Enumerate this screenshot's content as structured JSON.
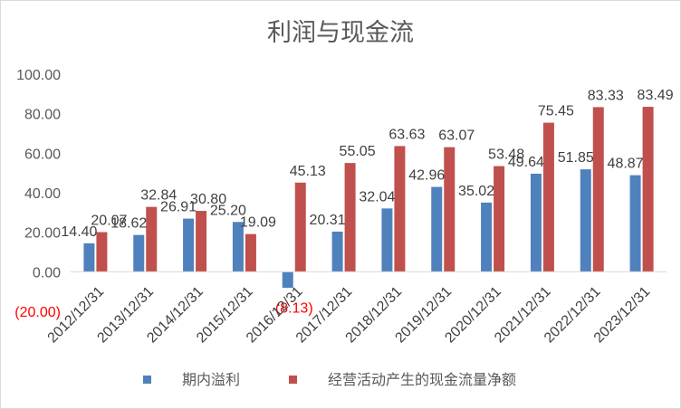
{
  "chart_data": {
    "type": "bar",
    "title": "利润与现金流",
    "categories": [
      "2012/12/31",
      "2013/12/31",
      "2014/12/31",
      "2015/12/31",
      "2016/12/31",
      "2017/12/31",
      "2018/12/31",
      "2019/12/31",
      "2020/12/31",
      "2021/12/31",
      "2022/12/31",
      "2023/12/31"
    ],
    "series": [
      {
        "name": "期内溢利",
        "color": "#4f81bd",
        "values": [
          14.4,
          18.62,
          26.91,
          25.2,
          -8.13,
          20.31,
          32.04,
          42.96,
          35.02,
          49.64,
          51.85,
          48.87
        ],
        "labels": [
          "14.40",
          "18.62",
          "26.91",
          "25.20",
          "(8.13)",
          "20.31",
          "32.04",
          "42.96",
          "35.02",
          "49.64",
          "51.85",
          "48.87"
        ]
      },
      {
        "name": "经营活动产生的现金流量净额",
        "color": "#c0504d",
        "values": [
          20.07,
          32.84,
          30.8,
          19.09,
          45.13,
          55.05,
          63.63,
          63.07,
          53.48,
          75.45,
          83.33,
          83.49
        ],
        "labels": [
          "20.07",
          "32.84",
          "30.80",
          "19.09",
          "45.13",
          "55.05",
          "63.63",
          "63.07",
          "53.48",
          "75.45",
          "83.33",
          "83.49"
        ]
      }
    ],
    "ylim": [
      -20,
      100
    ],
    "yticks": [
      100,
      80,
      60,
      40,
      20,
      0,
      -20
    ],
    "ytick_labels": [
      "100.00",
      "80.00",
      "60.00",
      "40.00",
      "20.00",
      "0.00",
      "(20.00)"
    ],
    "legend_position": "bottom",
    "grid": false
  }
}
